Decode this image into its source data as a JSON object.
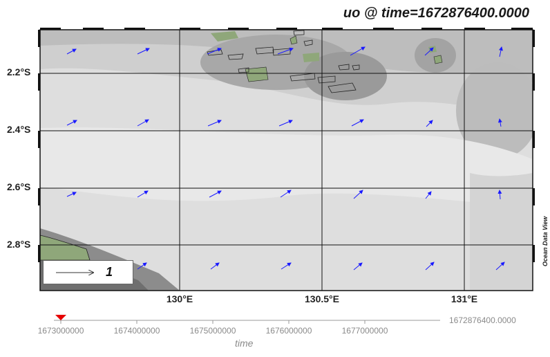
{
  "title": "uo @ time=1672876400.0000",
  "lat_labels": [
    "2.2°S",
    "2.4°S",
    "2.6°S",
    "2.8°S"
  ],
  "lon_labels": [
    "130°E",
    "130.5°E",
    "131°E"
  ],
  "credit": "Ocean Data View",
  "legend": {
    "value": "1"
  },
  "time_axis": {
    "label": "time",
    "current": "1672876400.0000",
    "ticks": [
      "1673000000",
      "1674000000",
      "1675000000",
      "1676000000",
      "1677000000"
    ]
  },
  "colors": {
    "vector": "#1a1aff",
    "land": "#8fa77a",
    "marker": "#e60000"
  }
}
